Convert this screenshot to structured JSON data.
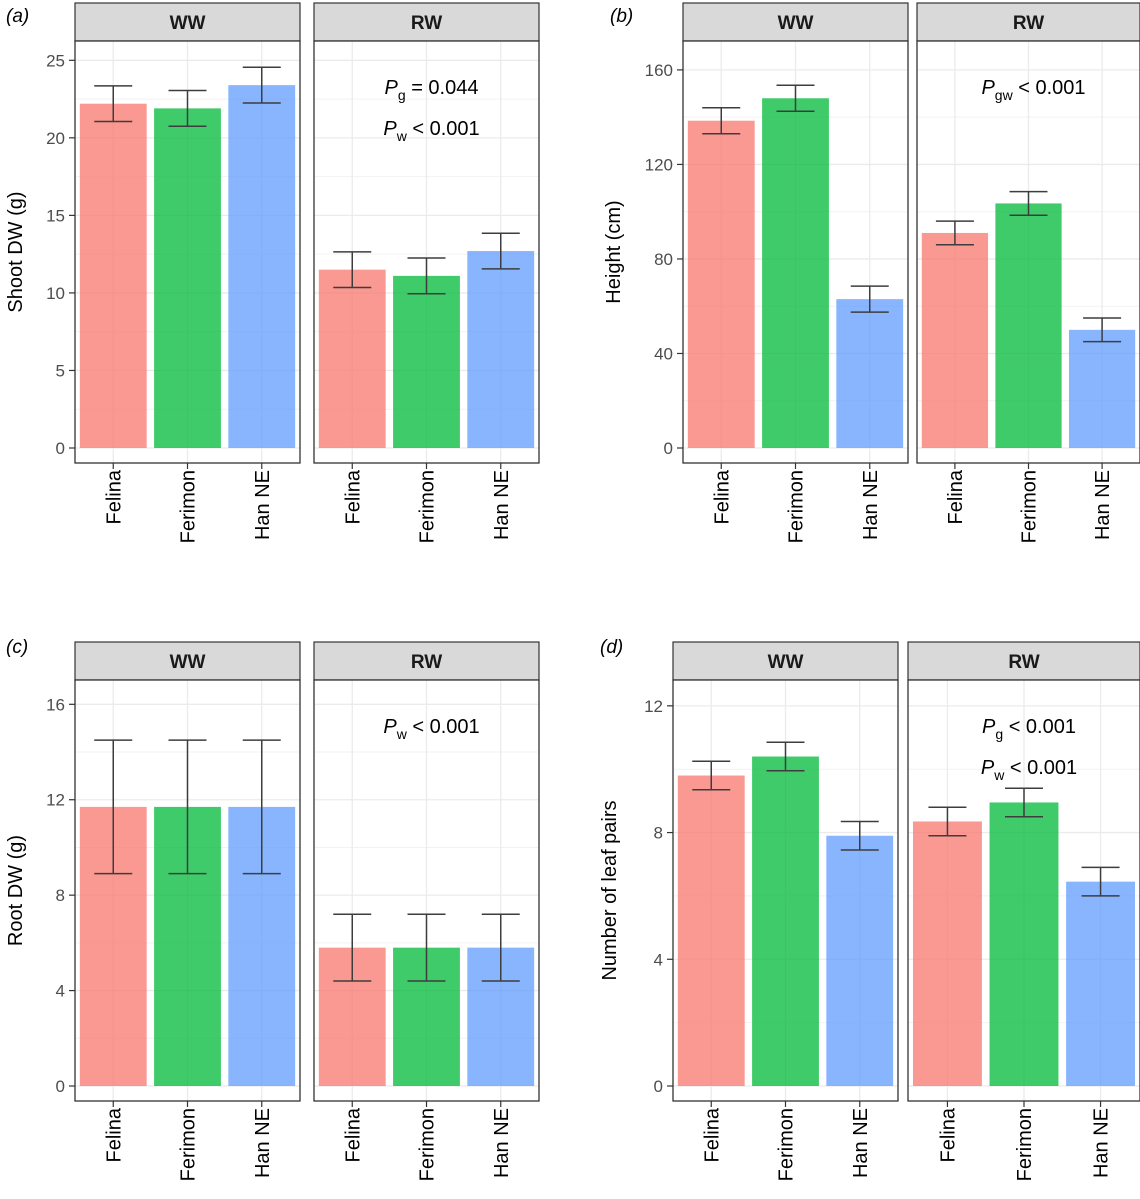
{
  "chart_data": [
    {
      "type": "bar",
      "panel": "(a)",
      "letter": "a",
      "ylabel": "Shoot DW (g)",
      "ylim": [
        0,
        25.6
      ],
      "yticks": [
        0,
        5,
        10,
        15,
        20,
        25
      ],
      "categories": [
        "Felina",
        "Ferimon",
        "Han NE"
      ],
      "colors": [
        "#f8766d",
        "#00ba38",
        "#619cff"
      ],
      "facets": [
        {
          "label": "WW",
          "values": [
            22.2,
            21.9,
            23.4
          ],
          "errors": [
            1.15,
            1.15,
            1.15
          ],
          "annotations": []
        },
        {
          "label": "RW",
          "values": [
            11.5,
            11.1,
            12.7
          ],
          "errors": [
            1.15,
            1.15,
            1.15
          ],
          "annotations": [
            {
              "p": "P",
              "sub": "g",
              "rest": " = 0.044"
            },
            {
              "p": "P",
              "sub": "w",
              "rest": " < 0.001"
            }
          ]
        }
      ]
    },
    {
      "type": "bar",
      "panel": "(b)",
      "letter": "b",
      "ylabel": "Height (cm)",
      "ylim": [
        0,
        168
      ],
      "yticks": [
        0,
        40,
        80,
        120,
        160
      ],
      "categories": [
        "Felina",
        "Ferimon",
        "Han NE"
      ],
      "colors": [
        "#f8766d",
        "#00ba38",
        "#619cff"
      ],
      "facets": [
        {
          "label": "WW",
          "values": [
            138.5,
            148,
            63
          ],
          "errors": [
            5.5,
            5.5,
            5.5
          ],
          "annotations": []
        },
        {
          "label": "RW",
          "values": [
            91,
            103.5,
            50
          ],
          "errors": [
            5,
            5,
            5
          ],
          "annotations": [
            {
              "p": "P",
              "sub": "gw",
              "rest": " < 0.001"
            }
          ]
        }
      ]
    },
    {
      "type": "bar",
      "panel": "(c)",
      "letter": "c",
      "ylabel": "Root DW (g)",
      "ylim": [
        0,
        16.6
      ],
      "yticks": [
        0,
        4,
        8,
        12,
        16
      ],
      "categories": [
        "Felina",
        "Ferimon",
        "Han NE"
      ],
      "colors": [
        "#f8766d",
        "#00ba38",
        "#619cff"
      ],
      "facets": [
        {
          "label": "WW",
          "values": [
            11.7,
            11.7,
            11.7
          ],
          "errors": [
            2.8,
            2.8,
            2.8
          ],
          "annotations": []
        },
        {
          "label": "RW",
          "values": [
            5.8,
            5.8,
            5.8
          ],
          "errors": [
            1.4,
            1.4,
            1.4
          ],
          "annotations": [
            {
              "p": "P",
              "sub": "w",
              "rest": " < 0.001"
            }
          ]
        }
      ]
    },
    {
      "type": "bar",
      "panel": "(d)",
      "letter": "d",
      "ylabel": "Number of leaf pairs",
      "ylim": [
        0,
        12.5
      ],
      "yticks": [
        0,
        4,
        8,
        12
      ],
      "categories": [
        "Felina",
        "Ferimon",
        "Han NE"
      ],
      "colors": [
        "#f8766d",
        "#00ba38",
        "#619cff"
      ],
      "facets": [
        {
          "label": "WW",
          "values": [
            9.8,
            10.4,
            7.9
          ],
          "errors": [
            0.45,
            0.45,
            0.45
          ],
          "annotations": []
        },
        {
          "label": "RW",
          "values": [
            8.35,
            8.95,
            6.45
          ],
          "errors": [
            0.45,
            0.45,
            0.45
          ],
          "annotations": [
            {
              "p": "P",
              "sub": "g",
              "rest": " < 0.001"
            },
            {
              "p": "P",
              "sub": "w",
              "rest": " < 0.001"
            }
          ]
        }
      ]
    }
  ]
}
